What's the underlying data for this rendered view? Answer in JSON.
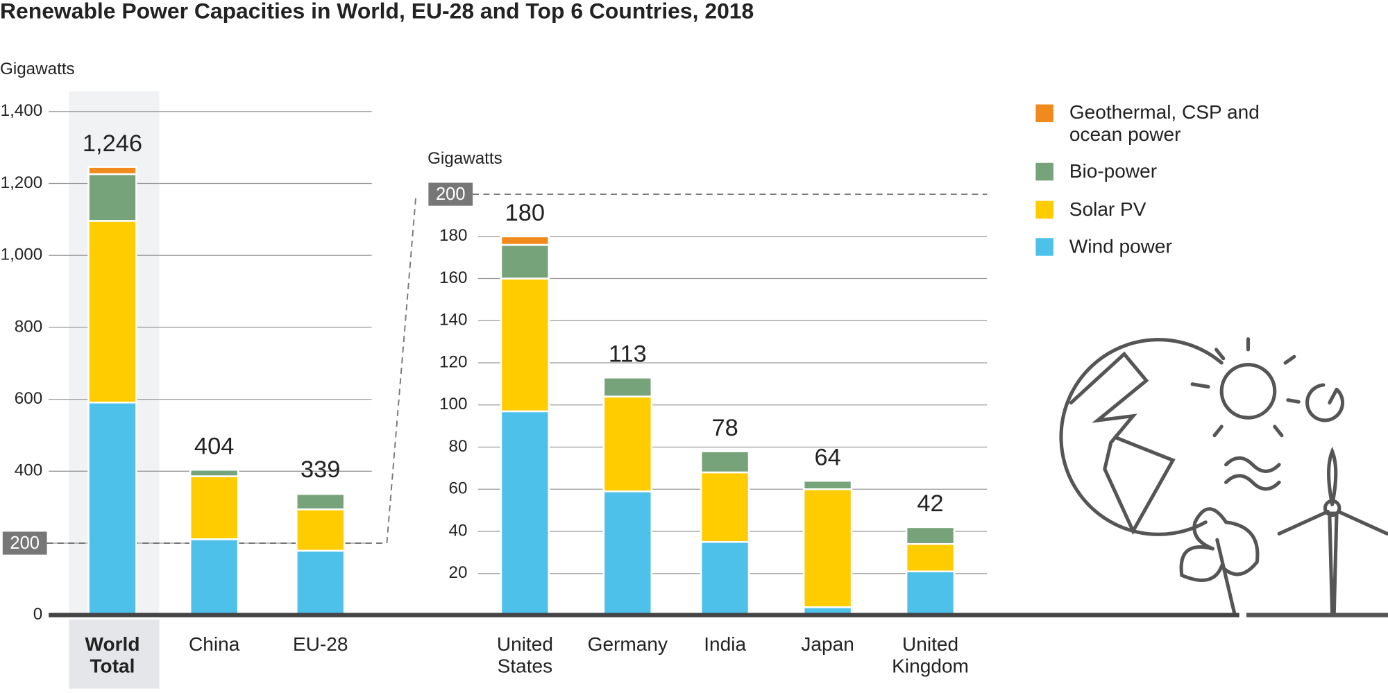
{
  "title": "Renewable Power Capacities in World, EU-28 and Top 6 Countries, 2018",
  "chart_data": [
    {
      "type": "stacked-bar",
      "y_label": "Gigawatts",
      "categories": [
        "World Total",
        "China",
        "EU-28"
      ],
      "series": [
        {
          "name": "Wind power",
          "color": "#4dc1ea",
          "values": [
            591,
            211,
            179
          ]
        },
        {
          "name": "Solar PV",
          "color": "#ffcc00",
          "values": [
            505,
            175,
            115
          ]
        },
        {
          "name": "Bio-power",
          "color": "#77a37a",
          "values": [
            130,
            18,
            43
          ]
        },
        {
          "name": "Geothermal, CSP and ocean power",
          "color": "#f08a1c",
          "values": [
            20,
            0,
            2
          ]
        }
      ],
      "totals": [
        1246,
        404,
        339
      ],
      "value_labels": [
        "1,246",
        "404",
        "339"
      ],
      "ylim": [
        0,
        1400
      ],
      "yticks": [
        0,
        200,
        {
          "value": 400,
          "label": "400"
        },
        600,
        800,
        {
          "value": 1000,
          "label": "1,000"
        },
        {
          "value": 1200,
          "label": "1,200"
        },
        {
          "value": 1400,
          "label": "1,400"
        }
      ],
      "grid": true,
      "reference_line": 200
    },
    {
      "type": "stacked-bar",
      "y_label": "Gigawatts",
      "categories": [
        "United States",
        "Germany",
        "India",
        "Japan",
        "United Kingdom"
      ],
      "series": [
        {
          "values": [
            97,
            59,
            35,
            4,
            21
          ]
        },
        {
          "values": [
            63,
            45,
            33,
            56,
            13
          ]
        },
        {
          "values": [
            16,
            9,
            10,
            4,
            8
          ]
        },
        {
          "values": [
            4,
            0,
            0,
            0,
            0
          ]
        }
      ],
      "totals": [
        180,
        113,
        78,
        64,
        42
      ],
      "ylim": [
        0,
        200
      ],
      "yticks": [
        20,
        40,
        60,
        80,
        100,
        120,
        140,
        160,
        180
      ],
      "grid": true,
      "reference_line": 200
    }
  ]
}
